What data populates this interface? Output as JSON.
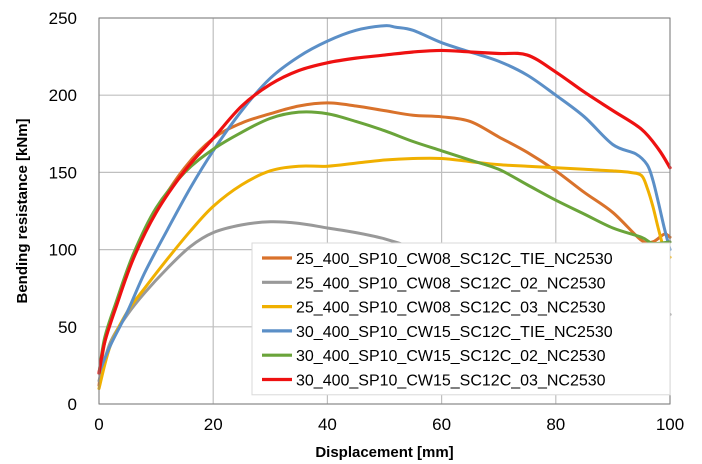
{
  "chart_data": {
    "type": "line",
    "title": "",
    "xlabel": "Displacement [mm]",
    "ylabel": "Bending resistance [kNm]",
    "xlim": [
      0,
      100
    ],
    "ylim": [
      0,
      250
    ],
    "xticks": [
      "0",
      "20",
      "40",
      "60",
      "80",
      "100"
    ],
    "yticks": [
      "0",
      "50",
      "100",
      "150",
      "200",
      "250"
    ],
    "grid": true,
    "legend_position": "bottom-right",
    "series": [
      {
        "name": "25_400_SP10_CW08_SC12C_TIE_NC2530",
        "color": "#d9722b",
        "x": [
          0,
          1,
          3,
          6,
          10,
          15,
          20,
          25,
          30,
          35,
          40,
          45,
          50,
          55,
          60,
          65,
          70,
          75,
          80,
          85,
          90,
          95,
          97,
          99,
          100
        ],
        "y": [
          12,
          40,
          65,
          95,
          125,
          153,
          172,
          182,
          188,
          193,
          195,
          193,
          190,
          187,
          186,
          183,
          173,
          163,
          151,
          137,
          124,
          106,
          105,
          110,
          108
        ]
      },
      {
        "name": "25_400_SP10_CW08_SC12C_02_NC2530",
        "color": "#999999",
        "x": [
          0,
          2,
          5,
          8,
          12,
          16,
          20,
          25,
          30,
          35,
          40,
          45,
          50,
          55,
          60,
          65,
          70,
          75,
          80,
          85,
          90,
          95,
          98,
          100
        ],
        "y": [
          15,
          40,
          58,
          72,
          88,
          102,
          111,
          116,
          118,
          117,
          114,
          111,
          107,
          101,
          93,
          85,
          77,
          70,
          64,
          59,
          55,
          54,
          55,
          58
        ]
      },
      {
        "name": "25_400_SP10_CW08_SC12C_03_NC2530",
        "color": "#f0b000",
        "x": [
          0,
          2,
          5,
          8,
          12,
          16,
          20,
          25,
          30,
          35,
          40,
          45,
          50,
          55,
          60,
          65,
          70,
          75,
          80,
          85,
          90,
          93,
          95,
          96,
          97,
          98,
          99,
          100
        ],
        "y": [
          10,
          38,
          60,
          75,
          94,
          112,
          128,
          142,
          151,
          154,
          154,
          156,
          158,
          159,
          159,
          157,
          155,
          154,
          153,
          152,
          151,
          150,
          148,
          140,
          128,
          113,
          100,
          95
        ]
      },
      {
        "name": "30_400_SP10_CW15_SC12C_TIE_NC2530",
        "color": "#5b8fc7",
        "x": [
          0,
          2,
          5,
          8,
          12,
          16,
          20,
          25,
          30,
          35,
          40,
          45,
          50,
          52,
          55,
          60,
          65,
          70,
          75,
          80,
          85,
          90,
          94,
          96,
          97,
          98,
          99,
          100
        ],
        "y": [
          20,
          38,
          60,
          85,
          113,
          140,
          164,
          190,
          211,
          225,
          235,
          242,
          245,
          244,
          242,
          234,
          228,
          222,
          213,
          200,
          186,
          168,
          162,
          155,
          145,
          130,
          114,
          100
        ]
      },
      {
        "name": "30_400_SP10_CW15_SC12C_02_NC2530",
        "color": "#6aa43a",
        "x": [
          0,
          1,
          3,
          6,
          10,
          15,
          20,
          25,
          30,
          35,
          40,
          45,
          50,
          55,
          60,
          65,
          70,
          75,
          80,
          85,
          90,
          95,
          97,
          100
        ],
        "y": [
          20,
          43,
          66,
          97,
          127,
          150,
          165,
          176,
          185,
          189,
          188,
          183,
          177,
          170,
          164,
          158,
          152,
          142,
          132,
          123,
          114,
          108,
          104,
          105
        ]
      },
      {
        "name": "30_400_SP10_CW15_SC12C_03_NC2530",
        "color": "#ee1111",
        "x": [
          0,
          1,
          3,
          6,
          10,
          15,
          20,
          25,
          30,
          35,
          40,
          45,
          50,
          55,
          60,
          65,
          70,
          75,
          80,
          85,
          90,
          95,
          98,
          100
        ],
        "y": [
          20,
          40,
          63,
          94,
          124,
          151,
          172,
          193,
          207,
          216,
          221,
          224,
          226,
          228,
          229,
          228,
          227,
          226,
          215,
          202,
          190,
          178,
          165,
          153
        ]
      }
    ]
  }
}
